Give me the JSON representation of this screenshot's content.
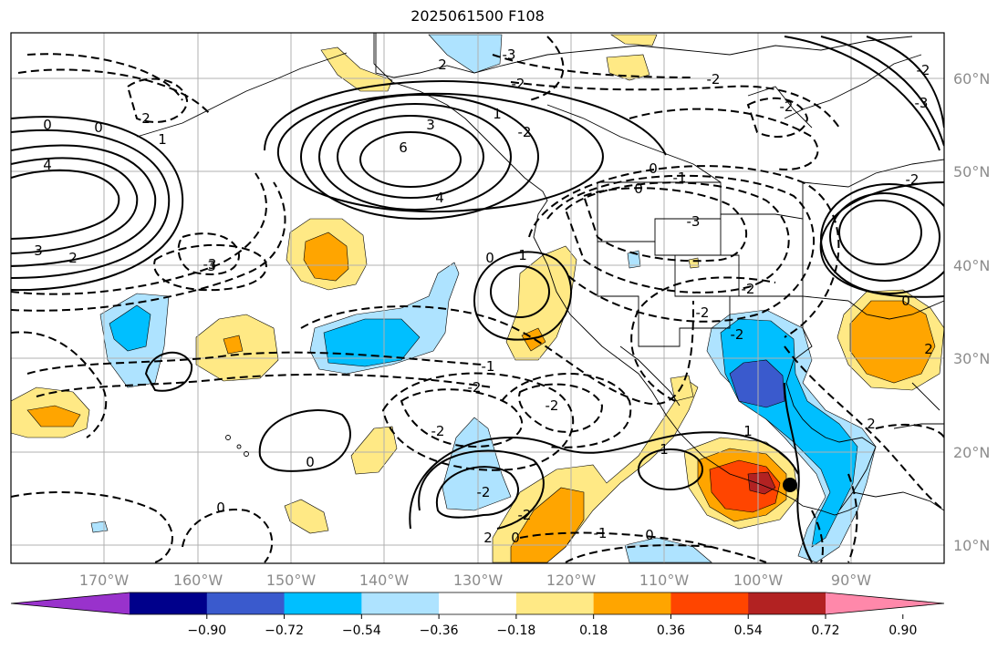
{
  "title": "2025061500 F108",
  "lat_labels": [
    "60°N",
    "50°N",
    "40°N",
    "30°N",
    "20°N",
    "10°N"
  ],
  "lon_labels": [
    "170°W",
    "160°W",
    "150°W",
    "140°W",
    "130°W",
    "120°W",
    "110°W",
    "100°W",
    "90°W"
  ],
  "colorbar": {
    "ticks": [
      "−0.90",
      "−0.72",
      "−0.54",
      "−0.36",
      "−0.18",
      "0.18",
      "0.36",
      "0.54",
      "0.72",
      "0.90"
    ],
    "colors": [
      "#9932cc",
      "#00008b",
      "#3a5acd",
      "#00bfff",
      "#aee3ff",
      "#ffffff",
      "#ffe985",
      "#ffa500",
      "#ff4500",
      "#b22222",
      "#ff88aa"
    ]
  },
  "contour_labels": [
    "0",
    "0",
    "4",
    "3",
    "2",
    "1",
    "2",
    "3",
    "6",
    "4",
    "3",
    "2",
    "1",
    "0",
    "-1",
    "-2",
    "-3",
    "-2",
    "-2",
    "-2",
    "-2",
    "-3",
    "-3",
    "-2",
    "-2",
    "-2",
    "0",
    "0",
    "1",
    "-1",
    "-2",
    "-2",
    "-2",
    "1",
    "1",
    "-2",
    "0",
    "-2",
    "0",
    "-1",
    "0",
    "0",
    "2",
    "2",
    "-2",
    "-3",
    "2",
    "0"
  ],
  "marker": "station-dot"
}
